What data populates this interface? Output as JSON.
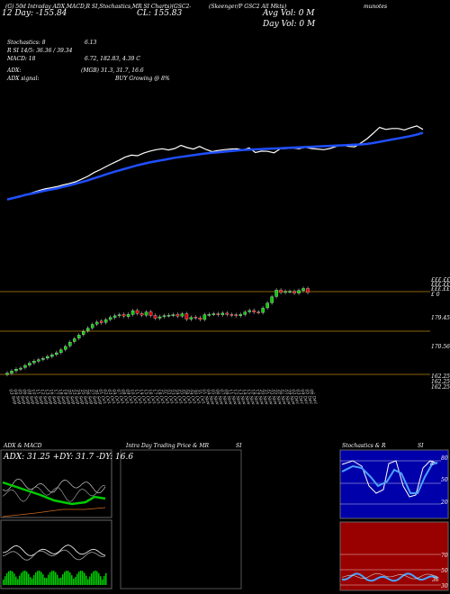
{
  "header": {
    "chart_line": "(G) 50d Intraday ADX,MACD,R SI,Stochastics,MR SI Charts)(GSC2-",
    "prev_label": "(Skeenger/P GSC2 All Mkts)",
    "cl_price": "CL: 155.83",
    "day_label": "12  Day:  -155.84",
    "avg_vol": "Avg Vol: 0  M",
    "day_vol": "Day Vol: 0  M",
    "links": "munotes"
  },
  "indicators": {
    "stoch_label": "Stochastics: 8",
    "stoch_val": "6.13",
    "rsi_label": "R  SI 14/5: 36.36  / 39.34",
    "macd_label": "MACD: 18",
    "macd_val": "6.72,  182.83,  4.39 C",
    "adx_label": "ADX:",
    "adx_val": "(MGB) 31.3,  31.7,  16.6",
    "adx_signal_label": "ADX  signal:",
    "adx_signal_val": "BUY Growing @ 8%"
  },
  "price_levels": [
    "£ 0",
    "179.45",
    "170.56",
    "162.25",
    "162.25",
    "162.25"
  ],
  "right_top_labels": [
    "£££.££",
    "£££.££",
    "£££.££"
  ],
  "dates": [
    "03 Sep",
    "04 Sep",
    "05 Sep",
    "06 Sep",
    "09 Sep",
    "10 Sep",
    "11 Sep",
    "12 Sep",
    "13 Sep",
    "16 Sep",
    "17 Sep",
    "18 Sep",
    "19 Sep",
    "20 Sep",
    "23 Sep",
    "24 Sep",
    "25 Sep",
    "26 Sep",
    "27 Sep",
    "30 Sep",
    "01 Oct",
    "02 Oct",
    "03 Oct",
    "04 Oct",
    "07 Oct",
    "08 Oct",
    "09 Oct",
    "10 Oct",
    "11 Oct",
    "14 Oct",
    "15 Oct",
    "16 Oct",
    "17 Oct",
    "18 Oct",
    "21 Oct",
    "22 Oct",
    "23 Oct",
    "24 Oct",
    "25 Oct",
    "28 Oct",
    "29 Oct",
    "30 Oct",
    "31 Oct",
    "01 Nov",
    "04 Nov",
    "05 Nov",
    "06 Nov",
    "07 Nov",
    "08 Nov",
    "11 Nov",
    "12 Nov",
    "13 Nov",
    "14 Nov",
    "15 Nov",
    "18 Nov",
    "19 Nov",
    "20 Nov",
    "21 Nov",
    "22 Nov",
    "25 Nov",
    "26 Nov",
    "27 Nov",
    "29 Nov",
    "02 Dec",
    "03 Dec",
    "04 Dec",
    "05 Dec",
    "06 Dec"
  ],
  "bottom": {
    "adx_title": "ADX  & MACD",
    "adx_readout": "ADX: 31.25 +DY: 31.7 -DY: 16.6",
    "mrsi_title": "Intra  Day Trading Price  & MR",
    "mrsi_suffix": "SI",
    "stoch_title": "Stochastics & R",
    "stoch_suffix": "SI",
    "stoch_ticks": [
      "80",
      "50",
      "20"
    ],
    "rsi_ticks": [
      "70",
      "50",
      "30"
    ],
    "stoch_readout": "8",
    "rsi_readout": "36"
  },
  "colors": {
    "up": "#00cc00",
    "down": "#dd0000",
    "ma": "#1f4fff",
    "price": "#ffffff",
    "level": "#b8860b"
  },
  "chart_data": {
    "type": "line",
    "ma_values": [
      162,
      162.5,
      163,
      163.6,
      164,
      164.5,
      165,
      165.4,
      165.8,
      166.3,
      166.8,
      167.4,
      168,
      168.6,
      169.3,
      170,
      170.7,
      171.4,
      172,
      172.6,
      173.2,
      173.8,
      174.3,
      174.8,
      175.2,
      175.6,
      176,
      176.4,
      176.7,
      177,
      177.3,
      177.6,
      177.9,
      178.1,
      178.3,
      178.5,
      178.7,
      178.9,
      179.1,
      179.2,
      179.3,
      179.4,
      179.5,
      179.6,
      179.7,
      179.8,
      179.9,
      180,
      180.1,
      180.2,
      180.3,
      180.4,
      180.5,
      180.6,
      180.7,
      180.8,
      180.9,
      181,
      181.2,
      181.5,
      181.9,
      182.3,
      182.7,
      183.1,
      183.5,
      183.9,
      184.4,
      185
    ],
    "closes": [
      162,
      162.6,
      163.2,
      163.5,
      164.3,
      165,
      165.6,
      166,
      166.4,
      167,
      167.5,
      168.1,
      169,
      170,
      171.3,
      172.3,
      173.4,
      174.5,
      175.5,
      176.6,
      177.3,
      177.1,
      178,
      178.7,
      179.2,
      179.5,
      179.1,
      179.6,
      180.7,
      179.9,
      179.4,
      180.3,
      179.3,
      178.5,
      178.9,
      179.2,
      179.4,
      179.5,
      179.1,
      179.8,
      178.2,
      178.7,
      178.6,
      178.1,
      179.5,
      179.6,
      179.8,
      179.5,
      180,
      179.6,
      179.4,
      179.2,
      179.6,
      180.3,
      180.8,
      180.3,
      180.2,
      181.5,
      183,
      184.9,
      186.9,
      186.2,
      186.5,
      186.5,
      186,
      186.8,
      187.4,
      186.2
    ],
    "opens": [
      161.6,
      162,
      162.7,
      163.2,
      163.7,
      164.4,
      165.1,
      165.6,
      166.1,
      166.5,
      167,
      167.6,
      168.2,
      169.1,
      170.2,
      171.5,
      172.5,
      173.6,
      174.7,
      175.6,
      176.7,
      177.6,
      177.2,
      178.1,
      178.7,
      179.2,
      179.6,
      179,
      179.6,
      180.8,
      179.9,
      179.4,
      180.4,
      179.3,
      178.5,
      179,
      179.3,
      179.4,
      179.6,
      179.1,
      179.8,
      178.2,
      178.8,
      178.6,
      178.1,
      179.5,
      179.7,
      179.8,
      179.5,
      180,
      179.6,
      179.5,
      179.2,
      179.6,
      180.4,
      180.8,
      180.3,
      180.2,
      181.6,
      183.1,
      185,
      186.9,
      186.2,
      186.5,
      186.5,
      186,
      186.8,
      187.4
    ],
    "ylim": [
      160,
      190
    ]
  }
}
